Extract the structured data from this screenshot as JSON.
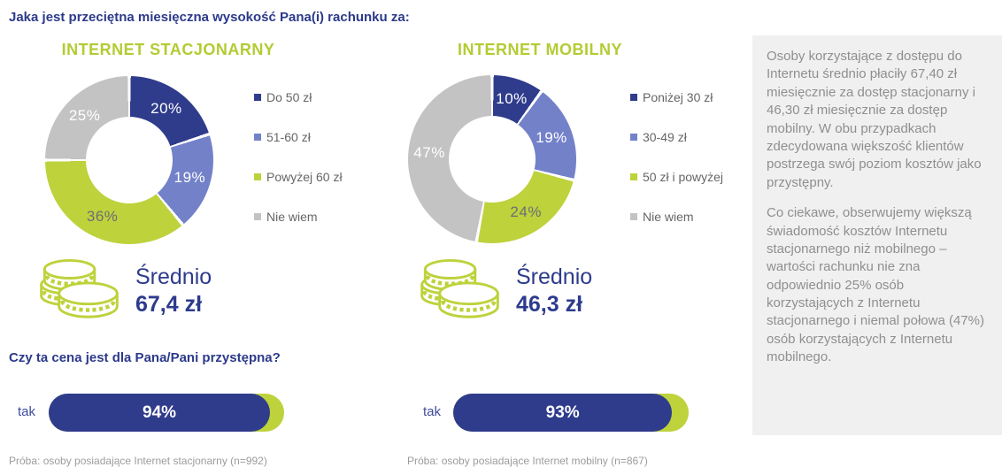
{
  "title": "Jaka jest przeciętna miesięczna wysokość Pana(i) rachunku za:",
  "question": "Czy ta cena jest dla Pana/Pani przystępna?",
  "colors": {
    "navy": "#2f3c8c",
    "periwinkle": "#7381c9",
    "green": "#bed23c",
    "gray": "#c3c3c3",
    "title_green": "#b2cc33",
    "heading_navy": "#2c3a8a",
    "legend_text": "#666666",
    "sidebar_bg": "#f0f0f0",
    "sidebar_text": "#8f8f8f"
  },
  "charts": [
    {
      "title": "INTERNET STACJONARNY",
      "slices": [
        {
          "label": "Do 50 zł",
          "value": 20,
          "color": "#2f3c8c",
          "label_color": "#ffffff"
        },
        {
          "label": "51-60 zł",
          "value": 19,
          "color": "#7381c9",
          "label_color": "#ffffff"
        },
        {
          "label": "Powyżej 60 zł",
          "value": 36,
          "color": "#bed23c",
          "label_color": "#6b6e74"
        },
        {
          "label": "Nie wiem",
          "value": 25,
          "color": "#c3c3c3",
          "label_color": "#ffffff"
        }
      ],
      "average_label": "Średnio",
      "average_value": "67,4 zł",
      "affordable_label": "tak",
      "affordable_pct": 94,
      "affordable_text": "94%",
      "sample": "Próba: osoby posiadające Internet stacjonarny (n=992)"
    },
    {
      "title": "INTERNET MOBILNY",
      "slices": [
        {
          "label": "Poniżej 30 zł",
          "value": 10,
          "color": "#2f3c8c",
          "label_color": "#ffffff"
        },
        {
          "label": "30-49 zł",
          "value": 19,
          "color": "#7381c9",
          "label_color": "#ffffff"
        },
        {
          "label": "50 zł i powyżej",
          "value": 24,
          "color": "#bed23c",
          "label_color": "#6b6e74"
        },
        {
          "label": "Nie wiem",
          "value": 47,
          "color": "#c3c3c3",
          "label_color": "#ffffff"
        }
      ],
      "average_label": "Średnio",
      "average_value": "46,3 zł",
      "affordable_label": "tak",
      "affordable_pct": 93,
      "affordable_text": "93%",
      "sample": "Próba: osoby posiadające Internet mobilny (n=867)"
    }
  ],
  "sidebar": {
    "paragraphs": [
      "Osoby korzystające z dostępu do Internetu średnio płaciły 67,40 zł miesięcznie za dostęp stacjonarny i 46,30 zł miesięcznie za dostęp mobilny. W obu przypadkach zdecydowana większość klientów postrzega swój poziom kosztów jako przystępny.",
      "Co ciekawe, obserwujemy większą świadomość kosztów Internetu stacjonarnego niż mobilnego – wartości rachunku nie zna odpowiednio 25% osób korzystających z Internetu stacjonarnego i niemal połowa (47%) osób korzystających z Internetu mobilnego."
    ]
  },
  "chart_data": [
    {
      "type": "pie",
      "title": "INTERNET STACJONARNY",
      "categories": [
        "Do 50 zł",
        "51-60 zł",
        "Powyżej 60 zł",
        "Nie wiem"
      ],
      "values": [
        20,
        19,
        36,
        25
      ],
      "colors": [
        "#2f3c8c",
        "#7381c9",
        "#bed23c",
        "#c3c3c3"
      ],
      "donut": true,
      "legend_position": "right",
      "annotations": [
        "Średnio 67,4 zł"
      ]
    },
    {
      "type": "pie",
      "title": "INTERNET MOBILNY",
      "categories": [
        "Poniżej 30 zł",
        "30-49 zł",
        "50 zł i powyżej",
        "Nie wiem"
      ],
      "values": [
        10,
        19,
        24,
        47
      ],
      "colors": [
        "#2f3c8c",
        "#7381c9",
        "#bed23c",
        "#c3c3c3"
      ],
      "donut": true,
      "legend_position": "right",
      "annotations": [
        "Średnio 46,3 zł"
      ]
    },
    {
      "type": "bar",
      "title": "Czy ta cena jest dla Pana/Pani przystępna?",
      "categories": [
        "tak — Internet stacjonarny",
        "tak — Internet mobilny"
      ],
      "values": [
        94,
        93
      ],
      "xlim": [
        0,
        100
      ],
      "orientation": "horizontal"
    }
  ]
}
